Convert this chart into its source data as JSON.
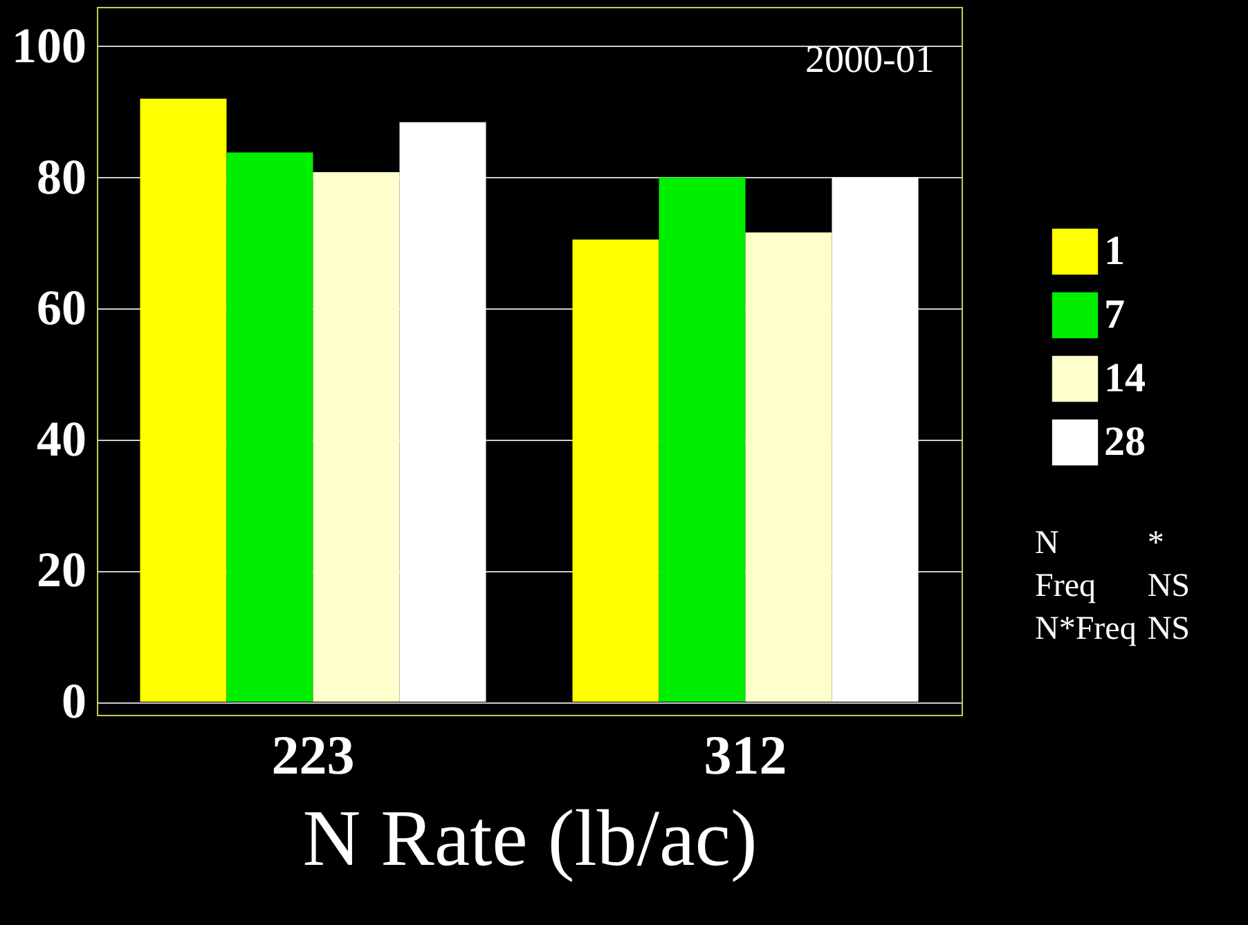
{
  "chart_data": {
    "type": "bar",
    "xlabel": "N Rate (lb/ac)",
    "categories": [
      "223",
      "312"
    ],
    "series": [
      {
        "name": "1",
        "color": "#ffff00",
        "values": [
          92,
          70.5
        ]
      },
      {
        "name": "7",
        "color": "#00ee00",
        "values": [
          83.8,
          80
        ]
      },
      {
        "name": "14",
        "color": "#ffffcc",
        "values": [
          80.8,
          71.6
        ]
      },
      {
        "name": "28",
        "color": "#ffffff",
        "values": [
          88.4,
          80
        ]
      }
    ],
    "ylim": [
      -2,
      106
    ],
    "yticks": [
      0,
      20,
      40,
      60,
      80,
      100
    ],
    "grid": "y",
    "legend": "right",
    "annotations": [
      "2000-01",
      "N *",
      "Freq NS",
      "N*Freq NS"
    ]
  }
}
